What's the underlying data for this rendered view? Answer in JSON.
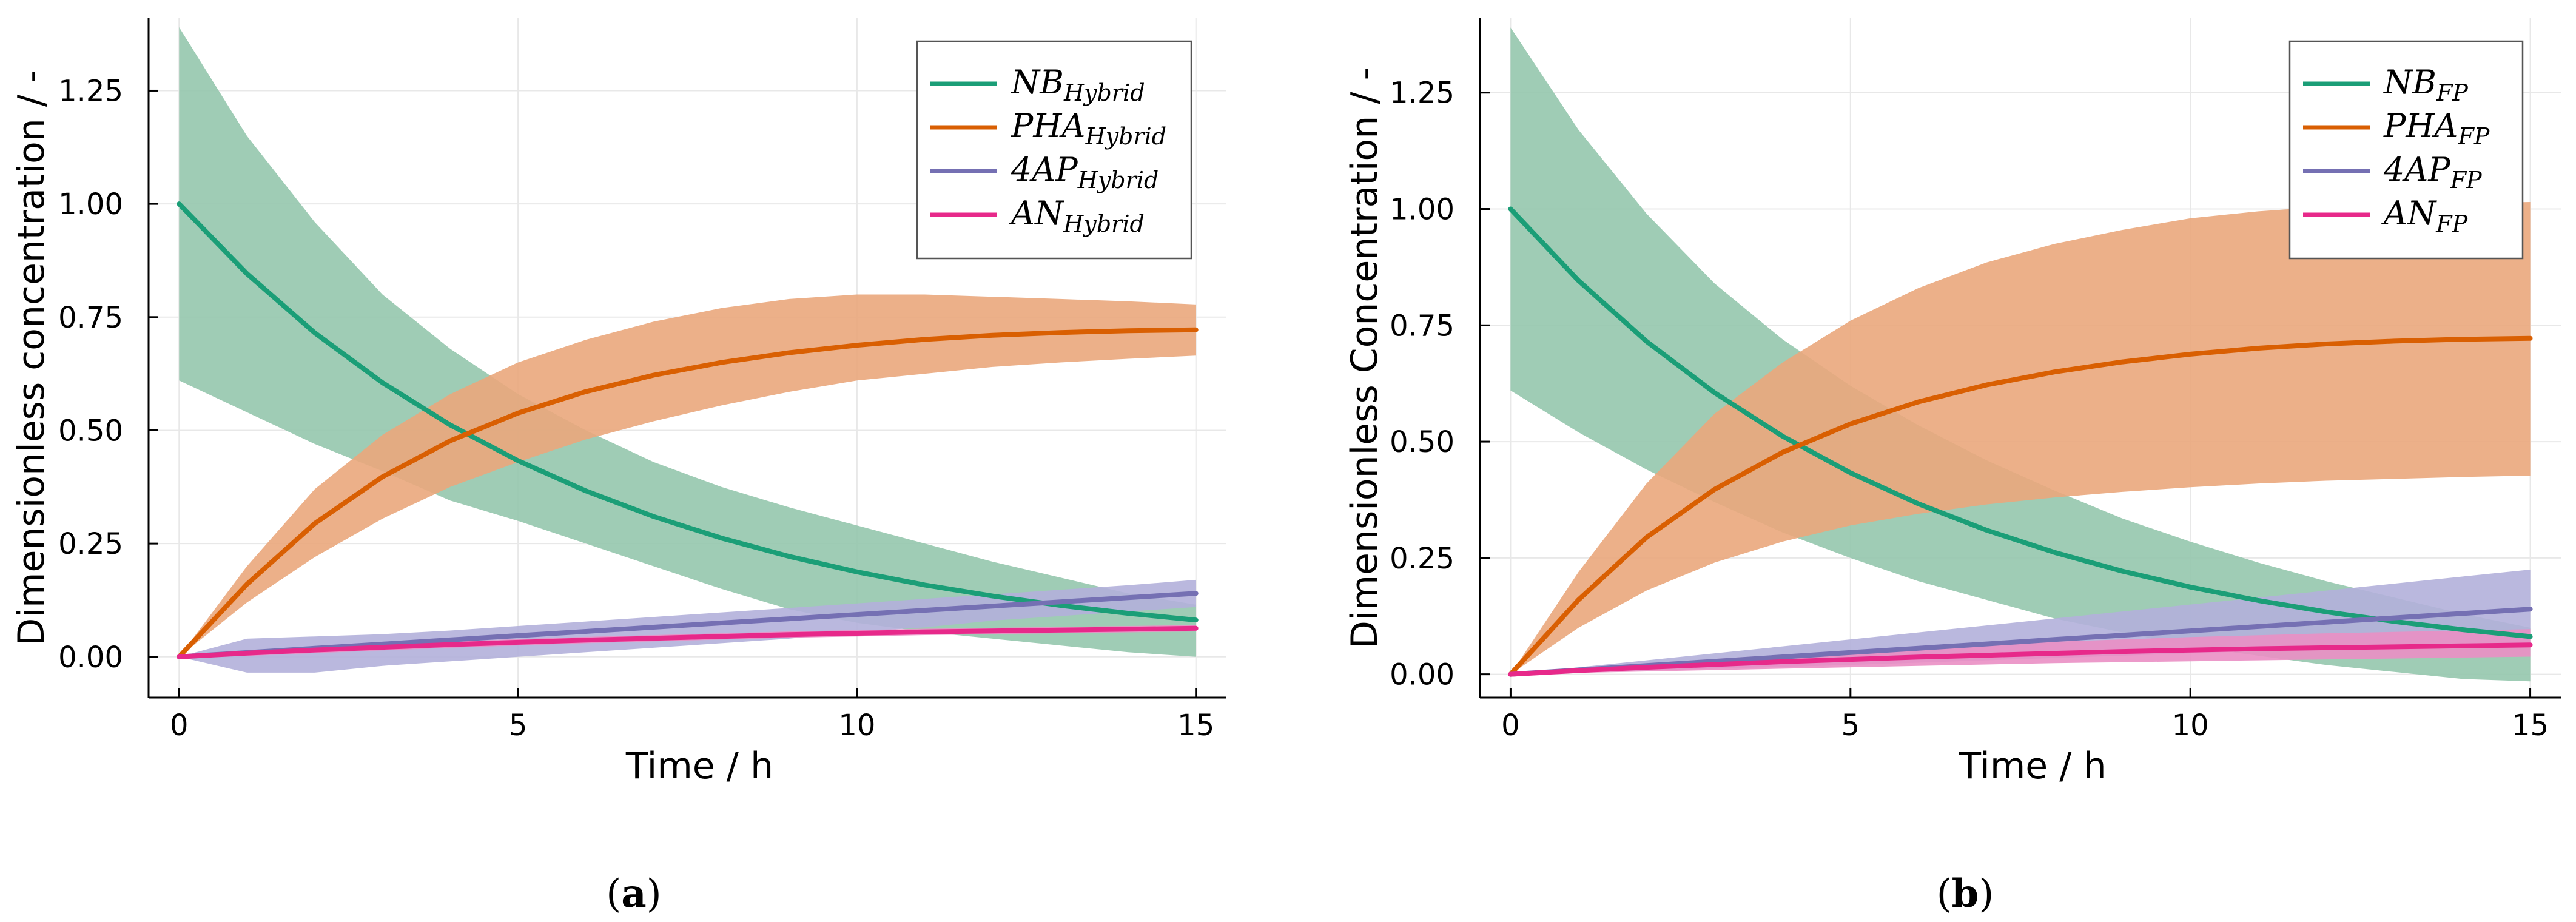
{
  "chart_data": [
    {
      "type": "line",
      "panel": "a",
      "caption": {
        "open": "(",
        "letter": "a",
        "close": ")"
      },
      "xlabel": "Time / h",
      "ylabel": "Dimensionless concentration / -",
      "xlim": [
        -0.45,
        15.45
      ],
      "ylim": [
        -0.09,
        1.41
      ],
      "xticks": [
        0,
        5,
        10,
        15
      ],
      "xtick_labels": [
        "0",
        "5",
        "10",
        "15"
      ],
      "yticks": [
        0,
        0.25,
        0.5,
        0.75,
        1.0,
        1.25
      ],
      "ytick_labels": [
        "0.00",
        "0.25",
        "0.50",
        "0.75",
        "1.00",
        "1.25"
      ],
      "grid": true,
      "legend_position": "top-right",
      "x": [
        0,
        1,
        2,
        3,
        4,
        5,
        6,
        7,
        8,
        9,
        10,
        11,
        12,
        13,
        14,
        15
      ],
      "series": [
        {
          "name": "NB",
          "sub": "Hybrid",
          "color": "#1b9e77",
          "values": [
            1.0,
            0.8459,
            0.7155,
            0.6052,
            0.5119,
            0.433,
            0.3663,
            0.3098,
            0.2621,
            0.2217,
            0.1875,
            0.1586,
            0.1342,
            0.1135,
            0.096,
            0.0812
          ],
          "lower": [
            0.61,
            0.54,
            0.47,
            0.41,
            0.345,
            0.3,
            0.25,
            0.2,
            0.15,
            0.105,
            0.075,
            0.055,
            0.04,
            0.025,
            0.01,
            0.0
          ],
          "upper": [
            1.39,
            1.15,
            0.96,
            0.8,
            0.68,
            0.58,
            0.5,
            0.43,
            0.375,
            0.33,
            0.29,
            0.25,
            0.21,
            0.175,
            0.14,
            0.115
          ]
        },
        {
          "name": "PHA",
          "sub": "Hybrid",
          "color": "#d95f02",
          "values": [
            0.0,
            0.1602,
            0.2943,
            0.3974,
            0.4769,
            0.5382,
            0.5855,
            0.6218,
            0.6498,
            0.6714,
            0.688,
            0.7008,
            0.71,
            0.716,
            0.72,
            0.722
          ],
          "lower": [
            0.0,
            0.12,
            0.22,
            0.305,
            0.375,
            0.43,
            0.48,
            0.52,
            0.555,
            0.585,
            0.61,
            0.625,
            0.64,
            0.65,
            0.658,
            0.665
          ],
          "upper": [
            0.0,
            0.2,
            0.37,
            0.49,
            0.58,
            0.65,
            0.7,
            0.74,
            0.77,
            0.79,
            0.8,
            0.8,
            0.795,
            0.79,
            0.785,
            0.778
          ]
        },
        {
          "name": "4AP",
          "sub": "Hybrid",
          "color": "#7570b3",
          "values": [
            0.0,
            0.0093,
            0.0187,
            0.028,
            0.0373,
            0.0467,
            0.056,
            0.0653,
            0.0747,
            0.084,
            0.0933,
            0.1027,
            0.112,
            0.1213,
            0.1307,
            0.14
          ],
          "lower": [
            0.0,
            -0.035,
            -0.035,
            -0.02,
            -0.01,
            0.0,
            0.01,
            0.02,
            0.03,
            0.04,
            0.055,
            0.065,
            0.08,
            0.09,
            0.1,
            0.11
          ],
          "upper": [
            0.0,
            0.04,
            0.045,
            0.05,
            0.058,
            0.068,
            0.078,
            0.088,
            0.098,
            0.108,
            0.118,
            0.128,
            0.138,
            0.148,
            0.158,
            0.17
          ]
        },
        {
          "name": "AN",
          "sub": "Hybrid",
          "color": "#e7298a",
          "values": [
            0.0,
            0.008,
            0.015,
            0.021,
            0.027,
            0.032,
            0.037,
            0.041,
            0.045,
            0.049,
            0.052,
            0.055,
            0.057,
            0.059,
            0.061,
            0.063
          ],
          "lower": [
            0.0,
            0.002,
            0.008,
            0.014,
            0.02,
            0.025,
            0.03,
            0.034,
            0.038,
            0.042,
            0.045,
            0.048,
            0.05,
            0.052,
            0.054,
            0.056
          ],
          "upper": [
            0.0,
            0.014,
            0.022,
            0.028,
            0.034,
            0.039,
            0.044,
            0.048,
            0.052,
            0.056,
            0.059,
            0.062,
            0.064,
            0.066,
            0.068,
            0.07
          ]
        }
      ]
    },
    {
      "type": "line",
      "panel": "b",
      "caption": {
        "open": "(",
        "letter": "b",
        "close": ")"
      },
      "xlabel": "Time / h",
      "ylabel": "Dimensionless Concentration / -",
      "xlim": [
        -0.45,
        15.45
      ],
      "ylim": [
        -0.05,
        1.41
      ],
      "xticks": [
        0,
        5,
        10,
        15
      ],
      "xtick_labels": [
        "0",
        "5",
        "10",
        "15"
      ],
      "yticks": [
        0,
        0.25,
        0.5,
        0.75,
        1.0,
        1.25
      ],
      "ytick_labels": [
        "0.00",
        "0.25",
        "0.50",
        "0.75",
        "1.00",
        "1.25"
      ],
      "grid": true,
      "legend_position": "top-right",
      "x": [
        0,
        1,
        2,
        3,
        4,
        5,
        6,
        7,
        8,
        9,
        10,
        11,
        12,
        13,
        14,
        15
      ],
      "series": [
        {
          "name": "NB",
          "sub": "FP",
          "color": "#1b9e77",
          "values": [
            1.0,
            0.8459,
            0.7155,
            0.6052,
            0.5119,
            0.433,
            0.3663,
            0.3098,
            0.2621,
            0.2217,
            0.1875,
            0.1586,
            0.1342,
            0.1135,
            0.096,
            0.0812
          ],
          "lower": [
            0.61,
            0.52,
            0.44,
            0.37,
            0.305,
            0.25,
            0.2,
            0.16,
            0.12,
            0.09,
            0.06,
            0.04,
            0.02,
            0.005,
            -0.01,
            -0.015
          ],
          "upper": [
            1.39,
            1.17,
            0.99,
            0.84,
            0.72,
            0.62,
            0.535,
            0.46,
            0.395,
            0.335,
            0.285,
            0.24,
            0.2,
            0.165,
            0.13,
            0.1
          ]
        },
        {
          "name": "PHA",
          "sub": "FP",
          "color": "#d95f02",
          "values": [
            0.0,
            0.1602,
            0.2943,
            0.3974,
            0.4769,
            0.5382,
            0.5855,
            0.6218,
            0.6498,
            0.6714,
            0.688,
            0.7008,
            0.71,
            0.716,
            0.72,
            0.722
          ],
          "lower": [
            0.0,
            0.1,
            0.18,
            0.24,
            0.285,
            0.32,
            0.345,
            0.365,
            0.38,
            0.392,
            0.402,
            0.41,
            0.416,
            0.42,
            0.424,
            0.427
          ],
          "upper": [
            0.0,
            0.22,
            0.41,
            0.56,
            0.67,
            0.76,
            0.83,
            0.885,
            0.925,
            0.955,
            0.98,
            0.995,
            1.005,
            1.01,
            1.012,
            1.015
          ]
        },
        {
          "name": "4AP",
          "sub": "FP",
          "color": "#7570b3",
          "values": [
            0.0,
            0.0093,
            0.0187,
            0.028,
            0.0373,
            0.0467,
            0.056,
            0.0653,
            0.0747,
            0.084,
            0.0933,
            0.1027,
            0.112,
            0.1213,
            0.1307,
            0.14
          ],
          "lower": [
            0.0,
            0.004,
            0.008,
            0.012,
            0.016,
            0.02,
            0.025,
            0.03,
            0.035,
            0.04,
            0.045,
            0.05,
            0.055,
            0.058,
            0.06,
            0.062
          ],
          "upper": [
            0.0,
            0.015,
            0.03,
            0.045,
            0.06,
            0.075,
            0.09,
            0.105,
            0.12,
            0.135,
            0.15,
            0.165,
            0.18,
            0.195,
            0.21,
            0.225
          ]
        },
        {
          "name": "AN",
          "sub": "FP",
          "color": "#e7298a",
          "values": [
            0.0,
            0.008,
            0.015,
            0.021,
            0.027,
            0.032,
            0.037,
            0.041,
            0.045,
            0.049,
            0.052,
            0.055,
            0.057,
            0.059,
            0.061,
            0.063
          ],
          "lower": [
            0.0,
            0.003,
            0.006,
            0.009,
            0.012,
            0.015,
            0.018,
            0.021,
            0.024,
            0.026,
            0.028,
            0.03,
            0.032,
            0.034,
            0.036,
            0.038
          ],
          "upper": [
            0.0,
            0.012,
            0.024,
            0.033,
            0.042,
            0.05,
            0.057,
            0.064,
            0.07,
            0.075,
            0.08,
            0.084,
            0.088,
            0.091,
            0.094,
            0.097
          ]
        }
      ]
    }
  ]
}
